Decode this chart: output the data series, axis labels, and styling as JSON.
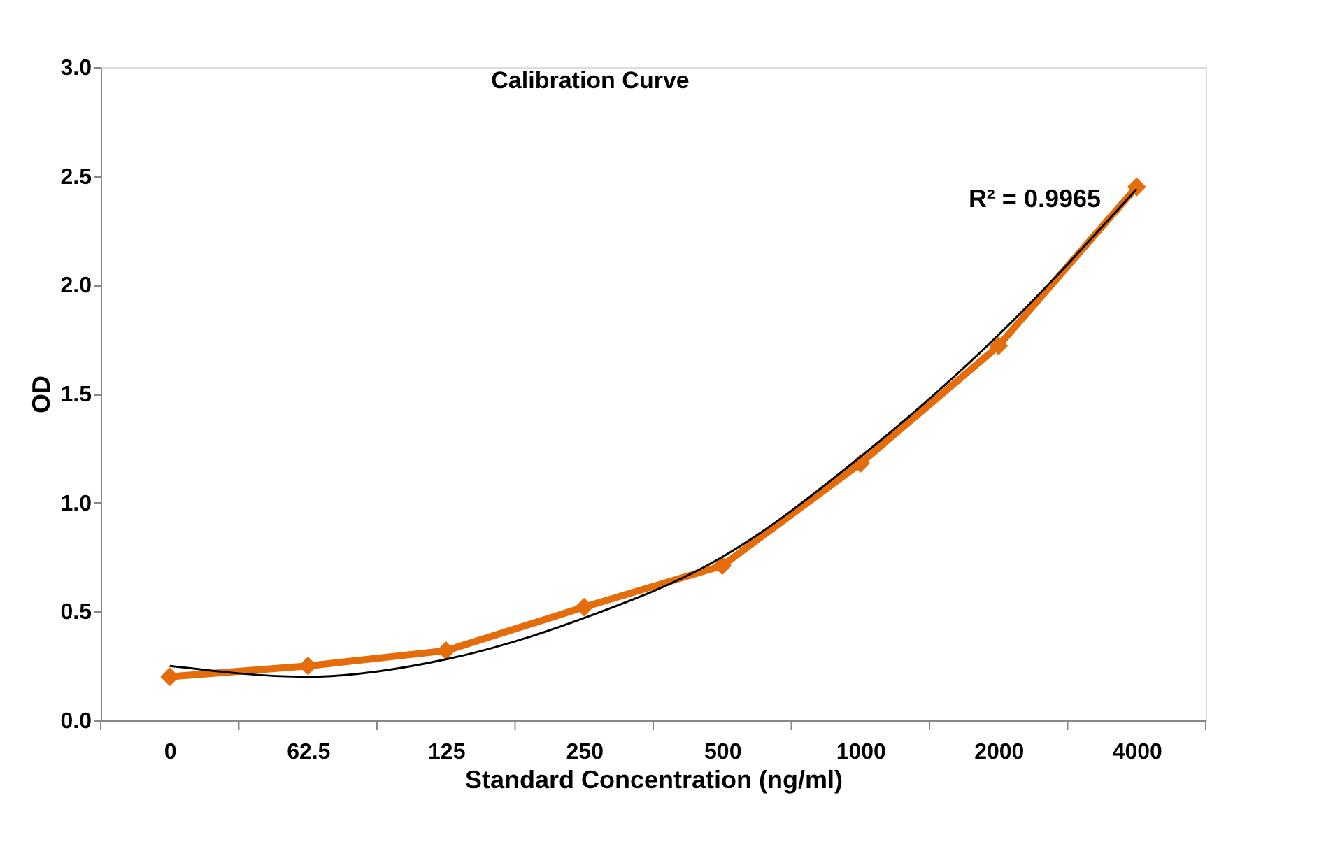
{
  "chart_data": {
    "type": "line",
    "title": "Calibration Curve",
    "xlabel": "Standard Concentration (ng/ml)",
    "ylabel": "OD",
    "categories": [
      "0",
      "62.5",
      "125",
      "250",
      "500",
      "1000",
      "2000",
      "4000"
    ],
    "series": [
      {
        "color": "#e46c0a",
        "marker": "diamond",
        "values": [
          0.2,
          0.25,
          0.32,
          0.52,
          0.71,
          1.18,
          1.72,
          2.45
        ]
      },
      {
        "color": "#000000",
        "marker": "none",
        "values": [
          0.25,
          0.2,
          0.28,
          0.47,
          0.75,
          1.21,
          1.77,
          2.44
        ]
      }
    ],
    "ylim": [
      0,
      3
    ],
    "yticks": [
      {
        "value": 0,
        "label": "0.0"
      },
      {
        "value": 0.5,
        "label": "0.5"
      },
      {
        "value": 1,
        "label": "1.0"
      },
      {
        "value": 1.5,
        "label": "1.5"
      },
      {
        "value": 2,
        "label": "2.0"
      },
      {
        "value": 2.5,
        "label": "2.5"
      },
      {
        "value": 3,
        "label": "3.0"
      }
    ],
    "annotations": [
      "R² = 0.9965"
    ],
    "grid": false,
    "line_style": "solid"
  }
}
